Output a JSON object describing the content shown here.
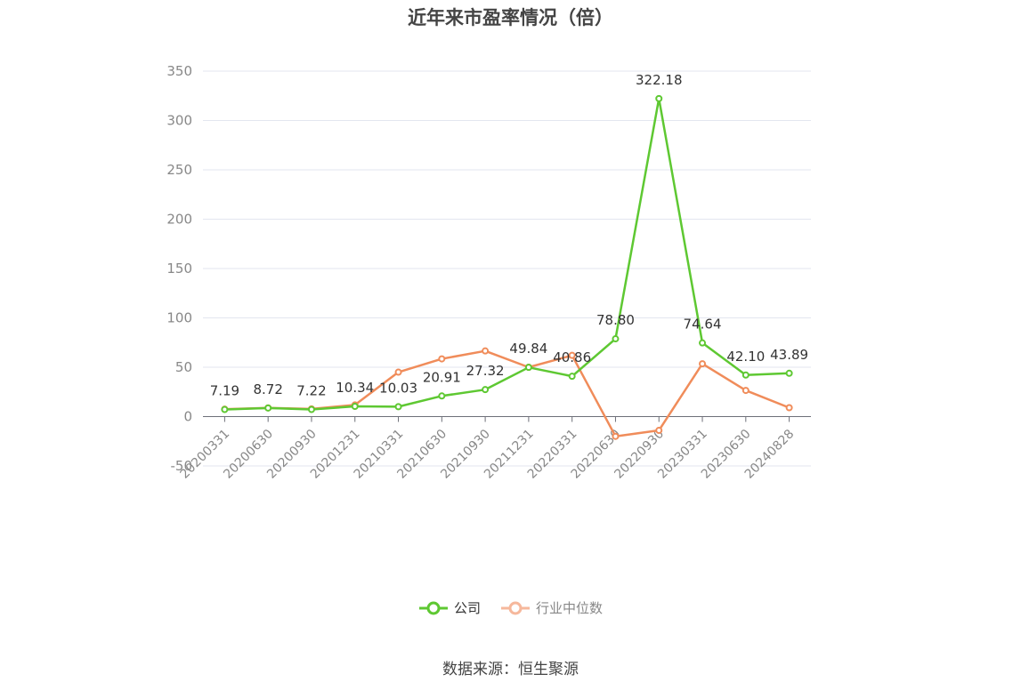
{
  "chart_data": {
    "type": "line",
    "title": "近年来市盈率情况（倍）",
    "categories": [
      "20200331",
      "20200630",
      "20200930",
      "20201231",
      "20210331",
      "20210630",
      "20210930",
      "20211231",
      "20220331",
      "20220630",
      "20220930",
      "20230331",
      "20230630",
      "20240828"
    ],
    "series": [
      {
        "name": "公司",
        "color": "#5ec832",
        "values": [
          7.19,
          8.72,
          7.22,
          10.34,
          10.03,
          20.91,
          27.32,
          49.84,
          40.86,
          78.8,
          322.18,
          74.64,
          42.1,
          43.89
        ],
        "labels": [
          "7.19",
          "8.72",
          "7.22",
          "10.34",
          "10.03",
          "20.91",
          "27.32",
          "49.84",
          "40.86",
          "78.80",
          "322.18",
          "74.64",
          "42.10",
          "43.89"
        ]
      },
      {
        "name": "行业中位数",
        "color": "#f08c5a",
        "values": [
          7.5,
          8.8,
          7.8,
          11.8,
          45.0,
          58.5,
          66.5,
          50.0,
          62.0,
          -20.0,
          -14.0,
          53.5,
          26.5,
          9.0
        ]
      }
    ],
    "yticks": [
      350,
      300,
      250,
      200,
      150,
      100,
      50,
      0,
      -50
    ],
    "ylim": [
      -50,
      350
    ],
    "grid": true,
    "legend_position": "bottom-center"
  },
  "source": "数据来源：恒生聚源"
}
